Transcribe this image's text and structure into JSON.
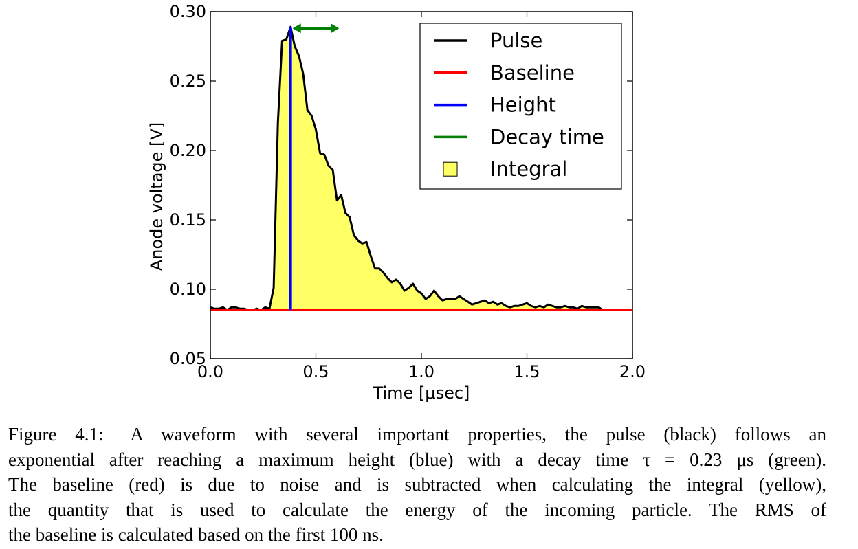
{
  "chart_data": {
    "type": "line",
    "xlabel": "Time [μsec]",
    "ylabel": "Anode voltage [V]",
    "xlim": [
      0.0,
      2.0
    ],
    "ylim": [
      0.05,
      0.3
    ],
    "xticks": [
      "0.0",
      "0.5",
      "1.0",
      "1.5",
      "2.0"
    ],
    "yticks": [
      "0.05",
      "0.10",
      "0.15",
      "0.20",
      "0.25",
      "0.30"
    ],
    "grid": false,
    "legend_position": "top-right",
    "legend": [
      {
        "label": "Pulse",
        "color": "#000000",
        "marker": "line"
      },
      {
        "label": "Baseline",
        "color": "#ff0000",
        "marker": "line"
      },
      {
        "label": "Height",
        "color": "#0000ff",
        "marker": "line"
      },
      {
        "label": "Decay time",
        "color": "#008000",
        "marker": "line"
      },
      {
        "label": "Integral",
        "color": "#ffff66",
        "marker": "square"
      }
    ],
    "series": [
      {
        "name": "Pulse",
        "color": "#000000",
        "x": [
          0.0,
          0.02,
          0.04,
          0.06,
          0.08,
          0.1,
          0.12,
          0.14,
          0.16,
          0.18,
          0.2,
          0.22,
          0.24,
          0.26,
          0.28,
          0.3,
          0.32,
          0.34,
          0.36,
          0.38,
          0.4,
          0.42,
          0.44,
          0.46,
          0.48,
          0.5,
          0.52,
          0.54,
          0.56,
          0.58,
          0.6,
          0.62,
          0.64,
          0.66,
          0.68,
          0.7,
          0.72,
          0.74,
          0.76,
          0.78,
          0.8,
          0.82,
          0.84,
          0.86,
          0.88,
          0.9,
          0.92,
          0.94,
          0.96,
          0.98,
          1.0,
          1.02,
          1.04,
          1.06,
          1.08,
          1.1,
          1.12,
          1.14,
          1.16,
          1.18,
          1.2,
          1.22,
          1.24,
          1.26,
          1.28,
          1.3,
          1.32,
          1.34,
          1.36,
          1.38,
          1.4,
          1.42,
          1.44,
          1.46,
          1.48,
          1.5,
          1.52,
          1.54,
          1.56,
          1.58,
          1.6,
          1.62,
          1.64,
          1.66,
          1.68,
          1.7,
          1.72,
          1.74,
          1.76,
          1.78,
          1.8,
          1.82,
          1.84,
          1.86
        ],
        "y": [
          0.087,
          0.086,
          0.086,
          0.087,
          0.085,
          0.087,
          0.087,
          0.086,
          0.086,
          0.085,
          0.085,
          0.086,
          0.085,
          0.087,
          0.086,
          0.101,
          0.22,
          0.279,
          0.28,
          0.289,
          0.275,
          0.268,
          0.255,
          0.229,
          0.225,
          0.215,
          0.198,
          0.197,
          0.189,
          0.186,
          0.164,
          0.168,
          0.155,
          0.152,
          0.139,
          0.135,
          0.133,
          0.134,
          0.124,
          0.115,
          0.115,
          0.112,
          0.108,
          0.105,
          0.107,
          0.104,
          0.099,
          0.101,
          0.104,
          0.099,
          0.097,
          0.093,
          0.095,
          0.099,
          0.095,
          0.092,
          0.093,
          0.093,
          0.093,
          0.095,
          0.093,
          0.091,
          0.089,
          0.09,
          0.091,
          0.092,
          0.09,
          0.091,
          0.089,
          0.09,
          0.088,
          0.087,
          0.088,
          0.088,
          0.089,
          0.09,
          0.088,
          0.087,
          0.088,
          0.087,
          0.089,
          0.088,
          0.087,
          0.087,
          0.088,
          0.087,
          0.087,
          0.086,
          0.088,
          0.087,
          0.087,
          0.087,
          0.087,
          0.085
        ]
      },
      {
        "name": "Baseline",
        "color": "#ff0000",
        "x": [
          0.0,
          2.0
        ],
        "y": [
          0.085,
          0.085
        ]
      },
      {
        "name": "Height",
        "color": "#0000ff",
        "x": [
          0.38,
          0.38
        ],
        "y": [
          0.085,
          0.289
        ]
      },
      {
        "name": "Decay time",
        "color": "#008000",
        "x": [
          0.39,
          0.61
        ],
        "y": [
          0.289,
          0.289
        ]
      },
      {
        "name": "Integral",
        "color": "#ffff66",
        "type": "area"
      }
    ]
  },
  "caption": {
    "lines": [
      "Figure 4.1:  A waveform with several important properties, the pulse (black) follows an",
      "exponential after reaching a maximum height (blue) with a decay time τ = 0.23 μs (green).",
      "The baseline (red) is due to noise and is subtracted when calculating the integral (yellow),",
      "the quantity that is used to calculate the energy of the incoming particle. The RMS of",
      "the baseline is calculated based on the first 100 ns."
    ]
  }
}
